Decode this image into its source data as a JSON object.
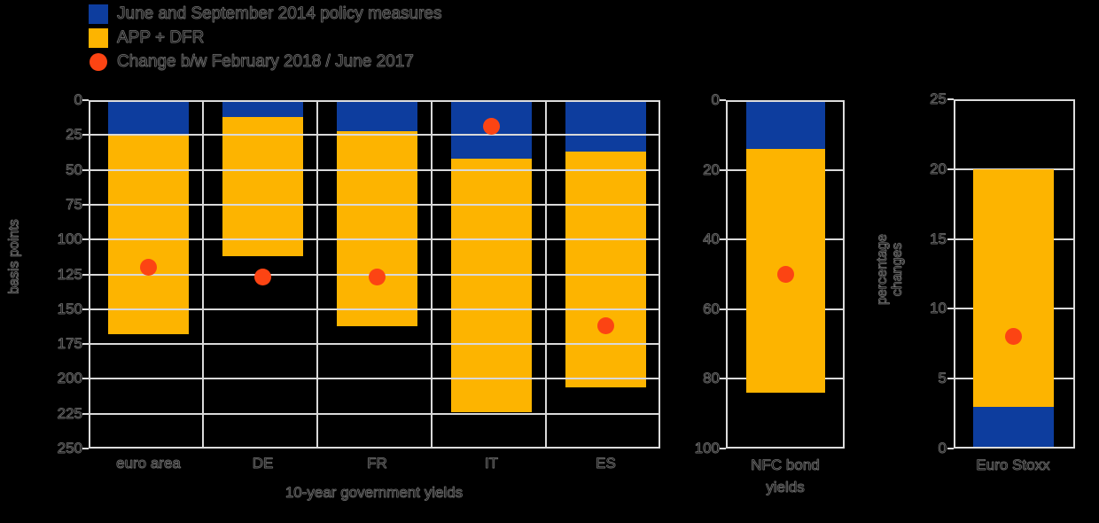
{
  "colors": {
    "background": "#000000",
    "blue": "#0d3d9e",
    "yellow": "#fdb400",
    "orange": "#fc4413",
    "grid": "#d9d9d9"
  },
  "legend": {
    "items": [
      {
        "label": "June and September 2014 policy measures",
        "marker": "blue-square"
      },
      {
        "label": "APP + DFR",
        "marker": "yellow-square"
      },
      {
        "label": "Change b/w February 2018 / June 2017",
        "marker": "orange-circle"
      }
    ]
  },
  "chart_data": [
    {
      "type": "bar",
      "stacked": true,
      "direction": "down",
      "title": "10-year government yields",
      "ylabel": "basis points",
      "categories": [
        "euro area",
        "DE",
        "FR",
        "IT",
        "ES"
      ],
      "yticks": [
        0,
        25,
        50,
        75,
        100,
        125,
        150,
        175,
        200,
        225,
        250
      ],
      "ylim": [
        0,
        250
      ],
      "grid": true,
      "series": [
        {
          "name": "June and September 2014 policy measures",
          "color_key": "blue",
          "values": [
            25,
            12,
            22,
            42,
            37
          ]
        },
        {
          "name": "APP + DFR",
          "color_key": "yellow",
          "values": [
            143,
            100,
            140,
            182,
            169
          ]
        }
      ],
      "stack_totals": [
        168,
        112,
        162,
        224,
        206
      ],
      "dot_series": {
        "name": "Change b/w February 2018 / June 2017",
        "color_key": "orange",
        "values": [
          120,
          127,
          127,
          19,
          162
        ]
      }
    },
    {
      "type": "bar",
      "stacked": true,
      "direction": "down",
      "categories": [
        "NFC bond yields"
      ],
      "xlabel_lines": [
        "NFC bond",
        "yields"
      ],
      "yticks": [
        0,
        20,
        40,
        60,
        80,
        100
      ],
      "ylim": [
        0,
        100
      ],
      "grid": true,
      "series": [
        {
          "name": "June and September 2014 policy measures",
          "color_key": "blue",
          "values": [
            14
          ]
        },
        {
          "name": "APP + DFR",
          "color_key": "yellow",
          "values": [
            70
          ]
        }
      ],
      "stack_totals": [
        84
      ],
      "dot_series": {
        "name": "Change b/w February 2018 / June 2017",
        "color_key": "orange",
        "values": [
          50
        ]
      }
    },
    {
      "type": "bar",
      "stacked": true,
      "direction": "up",
      "xlabel": "Euro Stoxx",
      "ylabel": "percentage changes",
      "categories": [
        "Euro Stoxx"
      ],
      "yticks": [
        25,
        20,
        15,
        10,
        5,
        0
      ],
      "ylim": [
        0,
        25
      ],
      "grid": true,
      "series": [
        {
          "name": "June and September 2014 policy measures",
          "color_key": "blue",
          "values": [
            3
          ]
        },
        {
          "name": "APP + DFR",
          "color_key": "yellow",
          "values": [
            17
          ]
        }
      ],
      "stack_totals": [
        20
      ],
      "dot_series": {
        "name": "Change b/w February 2018 / June 2017",
        "color_key": "orange",
        "values": [
          8
        ]
      }
    }
  ]
}
